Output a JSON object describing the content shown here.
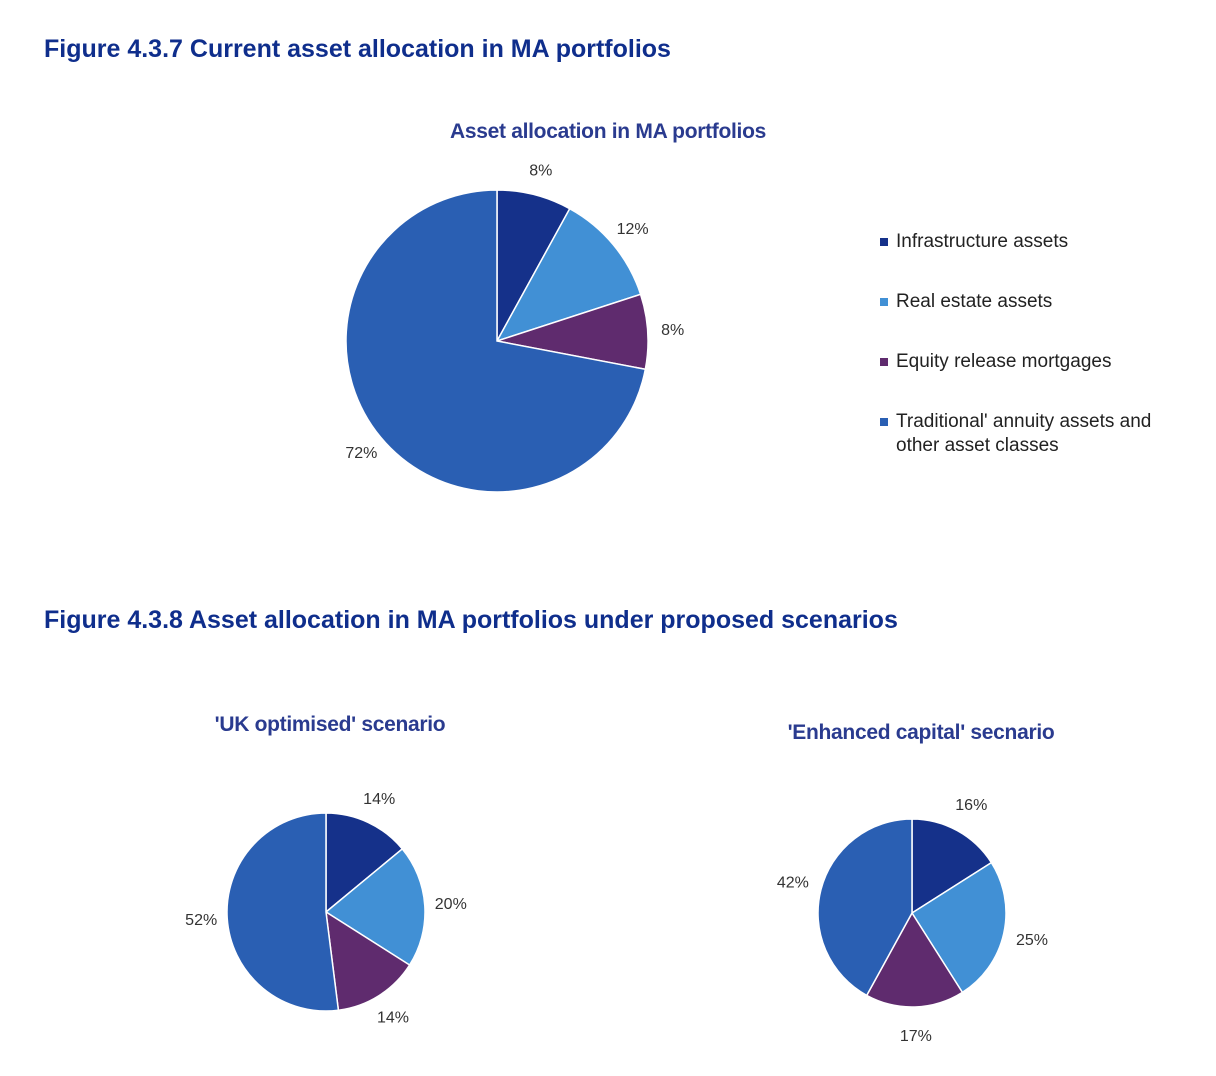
{
  "figures": {
    "fig1_title": "Figure 4.3.7 Current asset allocation in MA portfolios",
    "fig2_title": "Figure 4.3.8 Asset allocation in MA portfolios under proposed scenarios"
  },
  "colors": {
    "infrastructure": "#15318a",
    "real_estate": "#4190d5",
    "equity_release": "#5f2b6e",
    "traditional": "#2a5fb3"
  },
  "legend": {
    "items": [
      {
        "label": "Infrastructure assets",
        "color": "#15318a"
      },
      {
        "label": "Real estate assets",
        "color": "#4190d5"
      },
      {
        "label": "Equity release mortgages",
        "color": "#5f2b6e"
      },
      {
        "label": "Traditional' annuity assets and other asset classes",
        "color": "#2a5fb3"
      }
    ]
  },
  "chart_data": [
    {
      "type": "pie",
      "title": "Asset allocation in MA portfolios",
      "categories": [
        "Infrastructure assets",
        "Real estate assets",
        "Equity release mortgages",
        "Traditional' annuity assets and other asset classes"
      ],
      "values": [
        8,
        12,
        8,
        72
      ],
      "labels": [
        "8%",
        "12%",
        "8%",
        "72%"
      ],
      "legend_position": "right"
    },
    {
      "type": "pie",
      "title": "'UK optimised' scenario",
      "categories": [
        "Infrastructure assets",
        "Real estate assets",
        "Equity release mortgages",
        "Traditional' annuity assets and other asset classes"
      ],
      "values": [
        14,
        20,
        14,
        52
      ],
      "labels": [
        "14%",
        "20%",
        "14%",
        "52%"
      ]
    },
    {
      "type": "pie",
      "title": "'Enhanced capital' secnario",
      "categories": [
        "Infrastructure assets",
        "Real estate assets",
        "Equity release mortgages",
        "Traditional' annuity assets and other asset classes"
      ],
      "values": [
        16,
        25,
        17,
        42
      ],
      "labels": [
        "16%",
        "25%",
        "17%",
        "42%"
      ]
    }
  ]
}
